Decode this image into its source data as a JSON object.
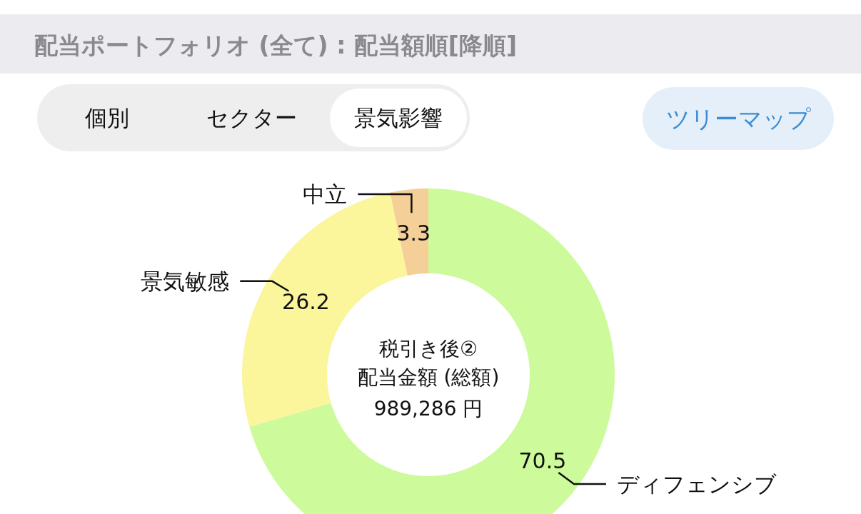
{
  "chart_data": {
    "type": "donut",
    "title": "配当ポートフォリオ (全て) : 配当額順[降順]",
    "categories": [
      "ディフェンシブ",
      "景気敏感",
      "中立"
    ],
    "values": [
      70.5,
      26.2,
      3.3
    ],
    "colors": [
      "#cdfa9a",
      "#fbf59c",
      "#f5cf98"
    ],
    "data_labels": true,
    "annotations": [
      "個別",
      "セクター",
      "景気影響",
      "ツリーマップ",
      "税引き後②",
      "配当金額 (総額)",
      "989,286 円"
    ]
  }
}
